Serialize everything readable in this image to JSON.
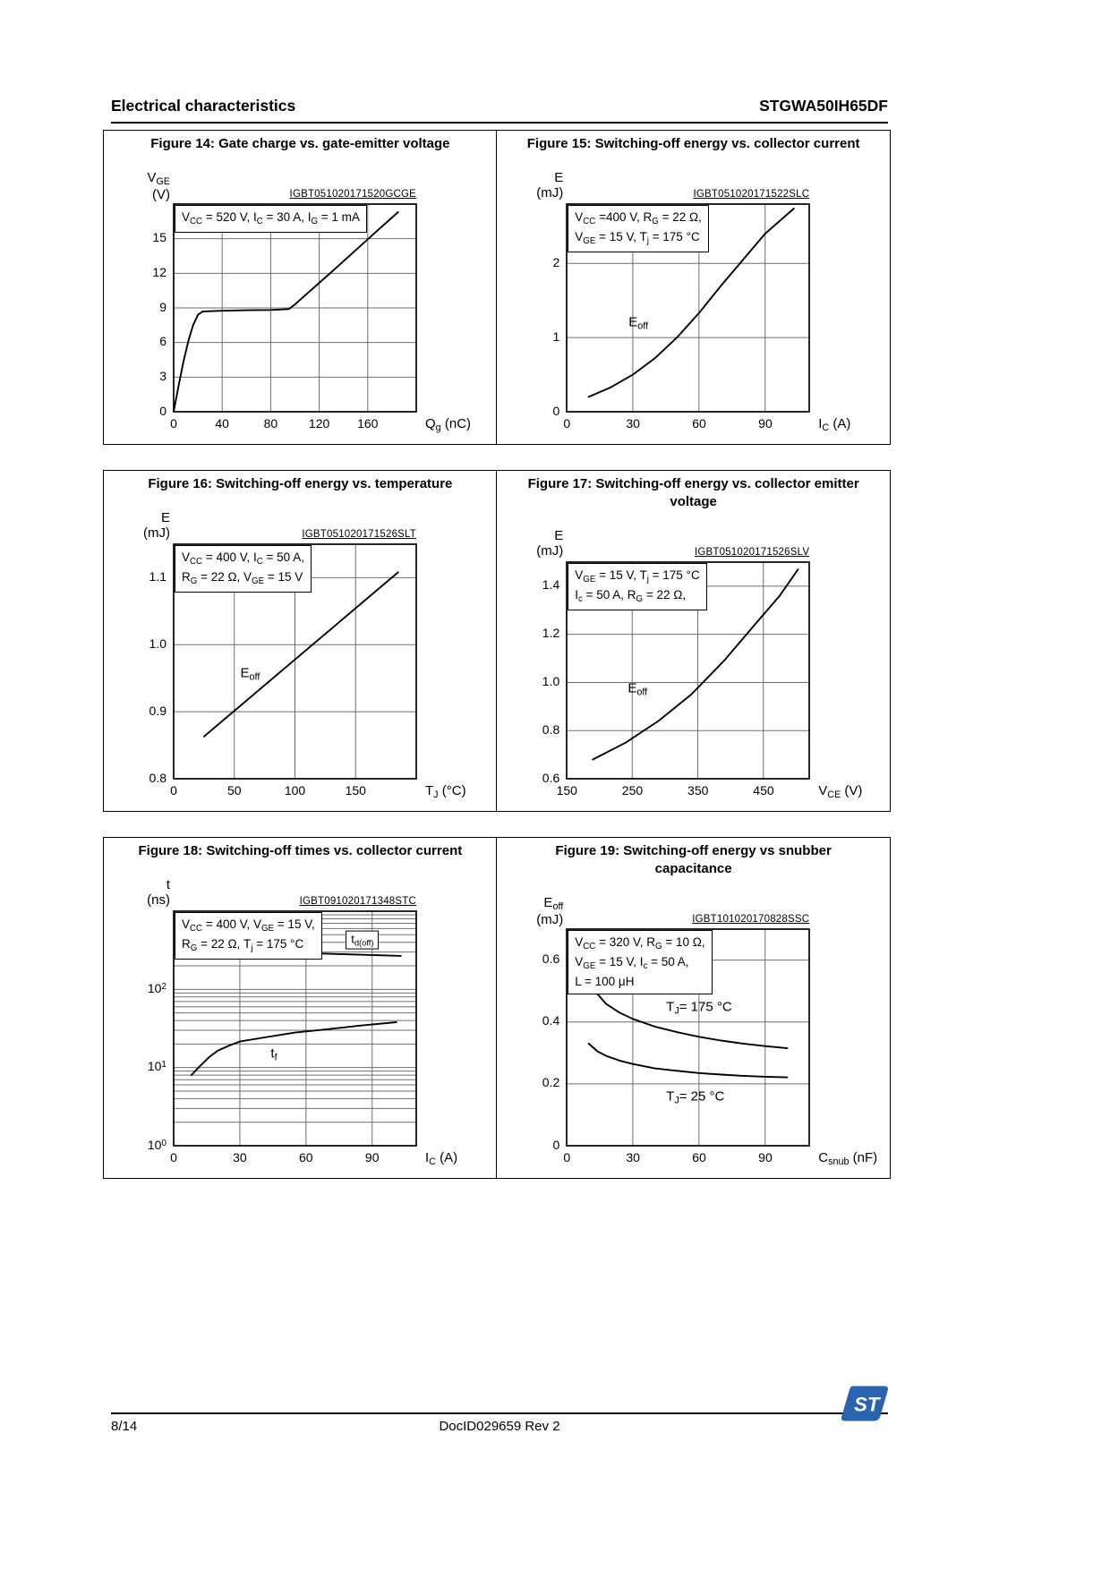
{
  "page": {
    "header": {
      "section": "Electrical characteristics",
      "part": "STGWA50IH65DF"
    },
    "footer": {
      "page_num": "8/14",
      "doc_id": "DocID029659 Rev 2",
      "logo_text": "ST",
      "logo_color": "#2a63ae"
    }
  },
  "chart_data": [
    {
      "id": "fig14",
      "type": "line",
      "title": "Figure 14: Gate charge vs. gate-emitter voltage",
      "watermark": "IGBT051020171520GCGE",
      "ylabel": [
        "V_{GE}",
        "(V)"
      ],
      "xlabel": "Q_{g} (nC)",
      "conditions": [
        "V_{CC} = 520 V, I_{C} = 30 A, I_{G} = 1 mA"
      ],
      "xlim": [
        0,
        200
      ],
      "ylim": [
        0,
        18
      ],
      "yscale": "linear",
      "xticks": [
        [
          0,
          "0"
        ],
        [
          40,
          "40"
        ],
        [
          80,
          "80"
        ],
        [
          120,
          "120"
        ],
        [
          160,
          "160"
        ]
      ],
      "yticks": [
        [
          0,
          "0"
        ],
        [
          3,
          "3"
        ],
        [
          6,
          "6"
        ],
        [
          9,
          "9"
        ],
        [
          12,
          "12"
        ],
        [
          15,
          "15"
        ]
      ],
      "series": [
        {
          "name": "gate-charge-curve",
          "points": [
            [
              0,
              0
            ],
            [
              4,
              2.2
            ],
            [
              8,
              4.3
            ],
            [
              12,
              6.1
            ],
            [
              16,
              7.5
            ],
            [
              20,
              8.4
            ],
            [
              24,
              8.7
            ],
            [
              40,
              8.75
            ],
            [
              60,
              8.8
            ],
            [
              80,
              8.82
            ],
            [
              95,
              8.9
            ],
            [
              100,
              9.3
            ],
            [
              115,
              10.7
            ],
            [
              130,
              12.1
            ],
            [
              150,
              14.0
            ],
            [
              170,
              15.9
            ],
            [
              185,
              17.3
            ]
          ]
        }
      ],
      "annotations": []
    },
    {
      "id": "fig15",
      "type": "line",
      "title": "Figure 15: Switching-off energy vs. collector current",
      "watermark": "IGBT051020171522SLC",
      "ylabel": [
        "E",
        "(mJ)"
      ],
      "xlabel": "I_{C} (A)",
      "conditions": [
        "V_{CC} =400 V, R_{G} = 22 Ω,",
        "V_{GE} = 15 V, T_{j} = 175 °C"
      ],
      "xlim": [
        0,
        110
      ],
      "ylim": [
        0,
        2.8
      ],
      "yscale": "linear",
      "xticks": [
        [
          0,
          "0"
        ],
        [
          30,
          "30"
        ],
        [
          60,
          "60"
        ],
        [
          90,
          "90"
        ]
      ],
      "yticks": [
        [
          0,
          "0"
        ],
        [
          1,
          "1"
        ],
        [
          2,
          "2"
        ]
      ],
      "series": [
        {
          "name": "eoff-vs-collector-current",
          "points": [
            [
              10,
              0.2
            ],
            [
              20,
              0.33
            ],
            [
              30,
              0.5
            ],
            [
              40,
              0.72
            ],
            [
              50,
              1.0
            ],
            [
              60,
              1.33
            ],
            [
              70,
              1.7
            ],
            [
              80,
              2.05
            ],
            [
              90,
              2.4
            ],
            [
              103,
              2.74
            ]
          ]
        }
      ],
      "annotations": [
        {
          "text": "E_{off}",
          "x": 28,
          "y": 1.19
        }
      ]
    },
    {
      "id": "fig16",
      "type": "line",
      "title": "Figure 16: Switching-off energy vs. temperature",
      "watermark": "IGBT051020171526SLT",
      "ylabel": [
        "E",
        "(mJ)"
      ],
      "xlabel": "T_{J} (°C)",
      "conditions": [
        "V_{CC} = 400 V, I_{C} = 50 A,",
        "R_{G} = 22 Ω, V_{GE} = 15 V"
      ],
      "xlim": [
        0,
        200
      ],
      "ylim": [
        0.8,
        1.15
      ],
      "yscale": "linear",
      "xticks": [
        [
          0,
          "0"
        ],
        [
          50,
          "50"
        ],
        [
          100,
          "100"
        ],
        [
          150,
          "150"
        ]
      ],
      "yticks": [
        [
          0.8,
          "0.8"
        ],
        [
          0.9,
          "0.9"
        ],
        [
          1.0,
          "1.0"
        ],
        [
          1.1,
          "1.1"
        ]
      ],
      "series": [
        {
          "name": "eoff-vs-temperature",
          "points": [
            [
              25,
              0.863
            ],
            [
              185,
              1.108
            ]
          ]
        }
      ],
      "annotations": [
        {
          "text": "E_{off}",
          "x": 55,
          "y": 0.956
        }
      ]
    },
    {
      "id": "fig17",
      "type": "line",
      "title": "Figure 17: Switching-off energy vs. collector emitter\nvoltage",
      "watermark": "IGBT051020171526SLV",
      "ylabel": [
        "E",
        "(mJ)"
      ],
      "xlabel": "V_{CE} (V)",
      "conditions": [
        "V_{GE} = 15 V, T_{j} = 175 °C",
        "I_{c} = 50 A, R_{G} = 22 Ω,"
      ],
      "xlim": [
        150,
        520
      ],
      "ylim": [
        0.6,
        1.5
      ],
      "yscale": "linear",
      "xticks": [
        [
          150,
          "150"
        ],
        [
          250,
          "250"
        ],
        [
          350,
          "350"
        ],
        [
          450,
          "450"
        ]
      ],
      "yticks": [
        [
          0.6,
          "0.6"
        ],
        [
          0.8,
          "0.8"
        ],
        [
          1.0,
          "1.0"
        ],
        [
          1.2,
          "1.2"
        ],
        [
          1.4,
          "1.4"
        ]
      ],
      "series": [
        {
          "name": "eoff-vs-vce",
          "points": [
            [
              190,
              0.68
            ],
            [
              240,
              0.75
            ],
            [
              290,
              0.84
            ],
            [
              340,
              0.95
            ],
            [
              390,
              1.09
            ],
            [
              440,
              1.25
            ],
            [
              475,
              1.36
            ],
            [
              503,
              1.47
            ]
          ]
        }
      ],
      "annotations": [
        {
          "text": "E_{off}",
          "x": 243,
          "y": 0.97
        }
      ]
    },
    {
      "id": "fig18",
      "type": "line",
      "title": "Figure 18: Switching-off times vs. collector current",
      "watermark": "IGBT091020171348STC",
      "ylabel": [
        "t",
        "(ns)"
      ],
      "xlabel": "I_{C} (A)",
      "conditions": [
        "V_{CC} = 400 V, V_{GE} = 15 V,",
        "R_{G} = 22 Ω, T_{j} = 175 °C"
      ],
      "xlim": [
        0,
        110
      ],
      "ylim": [
        1,
        1000
      ],
      "yscale": "log",
      "xticks": [
        [
          0,
          "0"
        ],
        [
          30,
          "30"
        ],
        [
          60,
          "60"
        ],
        [
          90,
          "90"
        ]
      ],
      "yticks": [
        [
          1,
          "10^{0}"
        ],
        [
          10,
          "10^{1}"
        ],
        [
          100,
          "10^{2}"
        ]
      ],
      "series": [
        {
          "name": "td-off-curve",
          "points": [
            [
              8,
              340
            ],
            [
              25,
              318
            ],
            [
              50,
              298
            ],
            [
              75,
              283
            ],
            [
              103,
              268
            ]
          ]
        },
        {
          "name": "tf-curve",
          "points": [
            [
              8,
              8
            ],
            [
              12,
              10.5
            ],
            [
              16,
              13.5
            ],
            [
              20,
              16.5
            ],
            [
              25,
              19
            ],
            [
              30,
              21.5
            ],
            [
              40,
              24
            ],
            [
              55,
              28
            ],
            [
              70,
              31
            ],
            [
              85,
              34.5
            ],
            [
              101,
              38
            ]
          ]
        }
      ],
      "annotations": [
        {
          "text": "t_{d(off)}",
          "x": 78,
          "y": 430,
          "boxed": true
        },
        {
          "text": "t_{f}",
          "x": 44,
          "y": 14.5
        }
      ]
    },
    {
      "id": "fig19",
      "type": "line",
      "title": "Figure 19: Switching-off energy vs snubber\ncapacitance",
      "watermark": "IGBT101020170828SSC",
      "ylabel": [
        "E_{off}",
        "(mJ)"
      ],
      "xlabel": "C_{snub} (nF)",
      "conditions": [
        "V_{CC} = 320 V, R_{G} = 10 Ω,",
        "V_{GE} = 15 V, I_{c} = 50 A,",
        "L = 100 μH"
      ],
      "xlim": [
        0,
        110
      ],
      "ylim": [
        0,
        0.7
      ],
      "yscale": "linear",
      "xticks": [
        [
          0,
          "0"
        ],
        [
          30,
          "30"
        ],
        [
          60,
          "60"
        ],
        [
          90,
          "90"
        ]
      ],
      "yticks": [
        [
          0,
          "0"
        ],
        [
          0.2,
          "0.2"
        ],
        [
          0.4,
          "0.4"
        ],
        [
          0.6,
          "0.6"
        ]
      ],
      "series": [
        {
          "name": "eoff-175C-curve",
          "points": [
            [
              10,
              0.535
            ],
            [
              14,
              0.49
            ],
            [
              18,
              0.458
            ],
            [
              24,
              0.43
            ],
            [
              30,
              0.41
            ],
            [
              40,
              0.385
            ],
            [
              50,
              0.367
            ],
            [
              60,
              0.352
            ],
            [
              70,
              0.34
            ],
            [
              80,
              0.33
            ],
            [
              90,
              0.322
            ],
            [
              100,
              0.315
            ]
          ]
        },
        {
          "name": "eoff-25C-curve",
          "points": [
            [
              10,
              0.33
            ],
            [
              14,
              0.305
            ],
            [
              18,
              0.29
            ],
            [
              24,
              0.275
            ],
            [
              30,
              0.264
            ],
            [
              40,
              0.25
            ],
            [
              50,
              0.242
            ],
            [
              60,
              0.235
            ],
            [
              70,
              0.23
            ],
            [
              80,
              0.226
            ],
            [
              90,
              0.223
            ],
            [
              100,
              0.221
            ]
          ]
        }
      ],
      "annotations": [
        {
          "text": "T_{J}= 175 °C",
          "x": 45,
          "y": 0.445
        },
        {
          "text": "T_{J}= 25 °C",
          "x": 45,
          "y": 0.155
        }
      ]
    }
  ]
}
